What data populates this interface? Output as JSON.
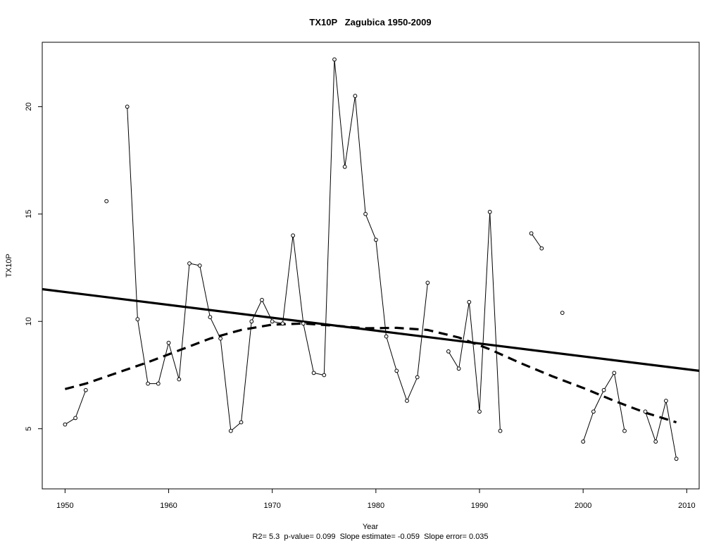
{
  "chart_data": {
    "type": "line",
    "title": "TX10P   Zagubica 1950-2009",
    "xlabel": "Year",
    "ylabel": "TX10P",
    "subtitle": "R2= 5.3  p-value= 0.099  Slope estimate= -0.059  Slope error= 0.035",
    "xlim": [
      1947.8,
      2011.2
    ],
    "ylim": [
      2.2,
      23
    ],
    "x_ticks": [
      "1950",
      "1960",
      "1970",
      "1980",
      "1990",
      "2000",
      "2010"
    ],
    "y_ticks": [
      "5",
      "10",
      "15",
      "20"
    ],
    "grid": false,
    "legend": "none",
    "series": [
      {
        "style": "line-with-points",
        "points": [
          [
            1950,
            5.2
          ],
          [
            1951,
            5.5
          ],
          [
            1952,
            6.8
          ],
          [
            1953,
            null
          ],
          [
            1954,
            15.6
          ],
          [
            1955,
            null
          ],
          [
            1956,
            20.0
          ],
          [
            1957,
            10.1
          ],
          [
            1958,
            7.1
          ],
          [
            1959,
            7.1
          ],
          [
            1960,
            9.0
          ],
          [
            1961,
            7.3
          ],
          [
            1962,
            12.7
          ],
          [
            1963,
            12.6
          ],
          [
            1964,
            10.2
          ],
          [
            1965,
            9.2
          ],
          [
            1966,
            4.9
          ],
          [
            1967,
            5.3
          ],
          [
            1968,
            10.0
          ],
          [
            1969,
            11.0
          ],
          [
            1970,
            10.0
          ],
          [
            1971,
            9.9
          ],
          [
            1972,
            14.0
          ],
          [
            1973,
            9.9
          ],
          [
            1974,
            7.6
          ],
          [
            1975,
            7.5
          ],
          [
            1976,
            22.2
          ],
          [
            1977,
            17.2
          ],
          [
            1978,
            20.5
          ],
          [
            1979,
            15.0
          ],
          [
            1980,
            13.8
          ],
          [
            1981,
            9.3
          ],
          [
            1982,
            7.7
          ],
          [
            1983,
            6.3
          ],
          [
            1984,
            7.4
          ],
          [
            1985,
            11.8
          ],
          [
            1986,
            null
          ],
          [
            1987,
            8.6
          ],
          [
            1988,
            7.8
          ],
          [
            1989,
            10.9
          ],
          [
            1990,
            5.8
          ],
          [
            1991,
            15.1
          ],
          [
            1992,
            4.9
          ],
          [
            1993,
            null
          ],
          [
            1994,
            null
          ],
          [
            1995,
            14.1
          ],
          [
            1996,
            13.4
          ],
          [
            1997,
            null
          ],
          [
            1998,
            10.4
          ],
          [
            1999,
            null
          ],
          [
            2000,
            4.4
          ],
          [
            2001,
            5.8
          ],
          [
            2002,
            6.8
          ],
          [
            2003,
            7.6
          ],
          [
            2004,
            4.9
          ],
          [
            2005,
            null
          ],
          [
            2006,
            5.8
          ],
          [
            2007,
            4.4
          ],
          [
            2008,
            6.3
          ],
          [
            2009,
            3.6
          ]
        ]
      },
      {
        "style": "solid-trend",
        "points": [
          [
            1947.8,
            11.5
          ],
          [
            2011.2,
            7.7
          ]
        ]
      },
      {
        "style": "dashed-smooth",
        "points": [
          [
            1950,
            6.85
          ],
          [
            1952,
            7.1
          ],
          [
            1955,
            7.6
          ],
          [
            1958,
            8.1
          ],
          [
            1961,
            8.65
          ],
          [
            1964,
            9.2
          ],
          [
            1967,
            9.6
          ],
          [
            1970,
            9.85
          ],
          [
            1973,
            9.9
          ],
          [
            1976,
            9.8
          ],
          [
            1979,
            9.68
          ],
          [
            1982,
            9.7
          ],
          [
            1985,
            9.6
          ],
          [
            1988,
            9.25
          ],
          [
            1991,
            8.7
          ],
          [
            1994,
            8.05
          ],
          [
            1997,
            7.45
          ],
          [
            2000,
            6.9
          ],
          [
            2003,
            6.3
          ],
          [
            2006,
            5.75
          ],
          [
            2009,
            5.3
          ]
        ]
      }
    ]
  }
}
